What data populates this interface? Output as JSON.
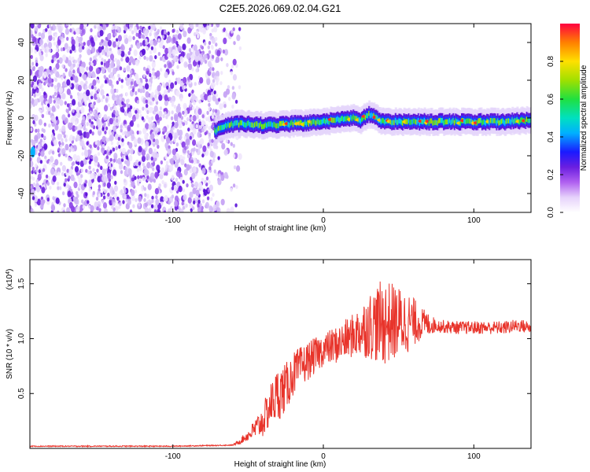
{
  "title": "C2E5.2026.069.02.04.G21",
  "colors": {
    "snr_line": "#e8342b",
    "frame": "#000000",
    "scatter_dark": "#6a1ee0",
    "scatter_light": "#d9c9f6"
  },
  "chart_data": [
    {
      "type": "heatmap",
      "name": "spectrogram",
      "xlabel": "Height of straight line (km)",
      "ylabel": "Frequency (Hz)",
      "xlim": [
        -195,
        138
      ],
      "ylim": [
        -50,
        50
      ],
      "xticks": [
        -100,
        0,
        100
      ],
      "yticks": [
        -40,
        -20,
        0,
        20,
        40
      ],
      "xtick_labels": [
        "-100",
        "0",
        "100"
      ],
      "ytick_labels": [
        "-40",
        "-20",
        "0",
        "20",
        "40"
      ],
      "noise_region_x": [
        -195,
        -55
      ],
      "signal_band": {
        "x_start": -72,
        "x_end": 138,
        "center_hz": [
          [
            -72,
            -7
          ],
          [
            -65,
            -4
          ],
          [
            -55,
            -3
          ],
          [
            -40,
            -4
          ],
          [
            -20,
            -3
          ],
          [
            0,
            -2
          ],
          [
            10,
            -1
          ],
          [
            20,
            0
          ],
          [
            25,
            -1
          ],
          [
            30,
            2
          ],
          [
            35,
            0
          ],
          [
            40,
            -2
          ],
          [
            60,
            -2
          ],
          [
            80,
            -2
          ],
          [
            100,
            -2
          ],
          [
            120,
            -2
          ],
          [
            138,
            -1
          ]
        ],
        "half_width_hz": 3
      },
      "colorbar": {
        "label": "Normalized spectral amplitude",
        "range": [
          0.0,
          1.0
        ],
        "ticks": [
          0.0,
          0.2,
          0.4,
          0.6,
          0.8
        ],
        "tick_labels": [
          "0.0",
          "0.2",
          "0.4",
          "0.6",
          "0.8"
        ]
      }
    },
    {
      "type": "line",
      "name": "snr",
      "xlabel": "Height of straight line (km)",
      "ylabel": "SNR (10 * v/v)",
      "y_scale_label_main": "(x10",
      "y_scale_label_exp": "4",
      "y_scale_label_close": ")",
      "xlim": [
        -195,
        138
      ],
      "ylim": [
        0.0,
        1.72
      ],
      "xticks": [
        -100,
        0,
        100
      ],
      "yticks": [
        0.5,
        1.0,
        1.5
      ],
      "xtick_labels": [
        "-100",
        "0",
        "100"
      ],
      "ytick_labels": [
        "0.5",
        "1.0",
        "1.5"
      ],
      "envelope": [
        [
          -195,
          0.02
        ],
        [
          -150,
          0.02
        ],
        [
          -100,
          0.02
        ],
        [
          -60,
          0.03
        ],
        [
          -56,
          0.06
        ],
        [
          -50,
          0.12
        ],
        [
          -45,
          0.18
        ],
        [
          -40,
          0.25
        ],
        [
          -35,
          0.4
        ],
        [
          -30,
          0.5
        ],
        [
          -25,
          0.55
        ],
        [
          -20,
          0.68
        ],
        [
          -10,
          0.8
        ],
        [
          0,
          0.9
        ],
        [
          10,
          0.95
        ],
        [
          20,
          1.03
        ],
        [
          30,
          1.12
        ],
        [
          40,
          1.15
        ],
        [
          50,
          1.15
        ],
        [
          60,
          1.15
        ],
        [
          70,
          1.13
        ],
        [
          80,
          1.11
        ],
        [
          90,
          1.1
        ],
        [
          100,
          1.1
        ],
        [
          110,
          1.1
        ],
        [
          120,
          1.1
        ],
        [
          130,
          1.12
        ],
        [
          138,
          1.1
        ]
      ],
      "noise_amplitude": [
        [
          -195,
          0.005
        ],
        [
          -60,
          0.005
        ],
        [
          -50,
          0.05
        ],
        [
          -35,
          0.2
        ],
        [
          -30,
          0.25
        ],
        [
          -20,
          0.2
        ],
        [
          0,
          0.15
        ],
        [
          20,
          0.2
        ],
        [
          30,
          0.3
        ],
        [
          40,
          0.4
        ],
        [
          55,
          0.3
        ],
        [
          65,
          0.15
        ],
        [
          75,
          0.06
        ],
        [
          138,
          0.06
        ]
      ]
    }
  ]
}
